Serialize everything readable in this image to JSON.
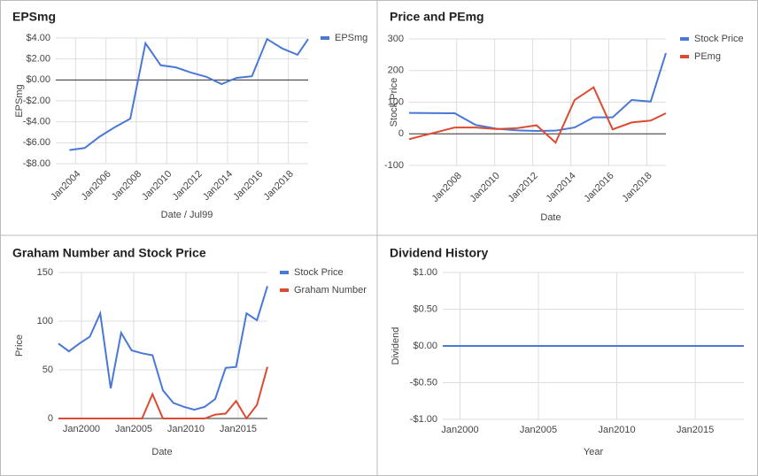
{
  "chart_data": [
    {
      "type": "line",
      "title": "EPSmg",
      "xlabel": "Date / Jul99",
      "ylabel": "EPSmg",
      "legend": "right",
      "grid": true,
      "xlim": [
        2002.7,
        2019.3
      ],
      "ylim": [
        -8,
        4
      ],
      "xticks": [
        {
          "value": 2004,
          "label": "Jan2004"
        },
        {
          "value": 2006,
          "label": "Jan2006"
        },
        {
          "value": 2008,
          "label": "Jan2008"
        },
        {
          "value": 2010,
          "label": "Jan2010"
        },
        {
          "value": 2012,
          "label": "Jan2012"
        },
        {
          "value": 2014,
          "label": "Jan2014"
        },
        {
          "value": 2016,
          "label": "Jan2016"
        },
        {
          "value": 2018,
          "label": "Jan2018"
        }
      ],
      "yticks": [
        {
          "value": -8,
          "label": "-$8.00"
        },
        {
          "value": -6,
          "label": "-$6.00"
        },
        {
          "value": -4,
          "label": "-$4.00"
        },
        {
          "value": -2,
          "label": "-$2.00"
        },
        {
          "value": 0,
          "label": "$0.00"
        },
        {
          "value": 2,
          "label": "$2.00"
        },
        {
          "value": 4,
          "label": "$4.00"
        }
      ],
      "x": [
        2003.6,
        2004.6,
        2005.6,
        2006.6,
        2007.6,
        2008.6,
        2009.6,
        2010.6,
        2011.6,
        2012.6,
        2013.6,
        2014.6,
        2015.6,
        2016.6,
        2017.6,
        2018.6,
        2019.3
      ],
      "series": [
        {
          "name": "EPSmg",
          "color": "#4a78d6",
          "values": [
            -6.7,
            -6.5,
            -5.4,
            -4.5,
            -3.7,
            3.5,
            1.4,
            1.2,
            0.7,
            0.3,
            -0.4,
            0.2,
            0.35,
            3.9,
            3.0,
            2.4,
            3.9
          ]
        }
      ]
    },
    {
      "type": "line",
      "title": "Price and PEmg",
      "xlabel": "Date",
      "ylabel": "Stock Price",
      "legend": "right",
      "grid": true,
      "xlim": [
        2005.5,
        2019.0
      ],
      "ylim": [
        -100,
        300
      ],
      "xticks": [
        {
          "value": 2008,
          "label": "Jan2008"
        },
        {
          "value": 2010,
          "label": "Jan2010"
        },
        {
          "value": 2012,
          "label": "Jan2012"
        },
        {
          "value": 2014,
          "label": "Jan2014"
        },
        {
          "value": 2016,
          "label": "Jan2016"
        },
        {
          "value": 2018,
          "label": "Jan2018"
        }
      ],
      "yticks": [
        -100,
        0,
        100,
        200,
        300
      ],
      "x": [
        2005.5,
        2007.9,
        2009.0,
        2010.1,
        2011.2,
        2012.2,
        2013.2,
        2014.2,
        2015.2,
        2016.2,
        2017.2,
        2018.2,
        2019.0
      ],
      "series": [
        {
          "name": "Stock Price",
          "color": "#4a78d6",
          "values": [
            66,
            65,
            28,
            16,
            11,
            9,
            10,
            20,
            52,
            52,
            107,
            102,
            255
          ]
        },
        {
          "name": "PEmg",
          "color": "#dc4a32",
          "values": [
            -17,
            20,
            20,
            15,
            18,
            27,
            -28,
            107,
            147,
            14,
            36,
            42,
            65
          ]
        }
      ]
    },
    {
      "type": "line",
      "title": "Graham Number and Stock Price",
      "xlabel": "Date",
      "ylabel": "Price",
      "legend": "right",
      "grid": true,
      "xlim": [
        1997.8,
        2017.8
      ],
      "ylim": [
        0,
        150
      ],
      "xticks": [
        {
          "value": 2000,
          "label": "Jan2000"
        },
        {
          "value": 2005,
          "label": "Jan2005"
        },
        {
          "value": 2010,
          "label": "Jan2010"
        },
        {
          "value": 2015,
          "label": "Jan2015"
        }
      ],
      "yticks": [
        0,
        50,
        100,
        150
      ],
      "x": [
        1997.8,
        1998.8,
        1999.8,
        2000.8,
        2001.8,
        2002.8,
        2003.8,
        2004.8,
        2005.8,
        2006.8,
        2007.8,
        2008.8,
        2009.8,
        2010.8,
        2011.8,
        2012.8,
        2013.8,
        2014.8,
        2015.8,
        2016.8,
        2017.8
      ],
      "series": [
        {
          "name": "Stock Price",
          "color": "#4a78d6",
          "values": [
            77,
            69,
            77,
            84,
            108,
            31,
            88,
            70,
            67,
            65,
            29,
            16,
            12,
            9,
            12,
            20,
            52,
            53,
            108,
            101,
            136
          ]
        },
        {
          "name": "Graham Number",
          "color": "#dc4a32",
          "values": [
            0,
            0,
            0,
            0,
            0,
            0,
            0,
            0,
            0,
            25,
            0,
            0,
            0,
            0,
            0,
            4,
            5,
            18,
            0,
            14,
            53
          ]
        }
      ]
    },
    {
      "type": "line",
      "title": "Dividend History",
      "xlabel": "Year",
      "ylabel": "Dividend",
      "grid": true,
      "xlim": [
        1998.9,
        2018.1
      ],
      "ylim": [
        -1,
        1
      ],
      "xticks": [
        {
          "value": 2000,
          "label": "Jan2000"
        },
        {
          "value": 2005,
          "label": "Jan2005"
        },
        {
          "value": 2010,
          "label": "Jan2010"
        },
        {
          "value": 2015,
          "label": "Jan2015"
        }
      ],
      "yticks": [
        {
          "value": -1,
          "label": "-$1.00"
        },
        {
          "value": -0.5,
          "label": "-$0.50"
        },
        {
          "value": 0,
          "label": "$0.00"
        },
        {
          "value": 0.5,
          "label": "$0.50"
        },
        {
          "value": 1,
          "label": "$1.00"
        }
      ],
      "x": [
        1998.9,
        2018.1
      ],
      "color": "#4a78d6",
      "values": [
        0,
        0
      ]
    }
  ]
}
